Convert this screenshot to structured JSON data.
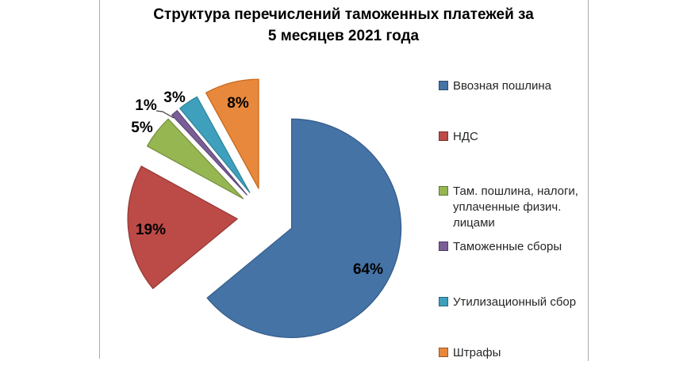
{
  "chart": {
    "title": "Структура перечислений таможенных платежей за\n5 месяцев 2021 года"
  },
  "chart_data": {
    "type": "pie",
    "title": "Структура перечислений таможенных платежей за 5 месяцев 2021 года",
    "unit": "%",
    "start_angle_deg": 0,
    "direction": "clockwise",
    "exploded": true,
    "legend_position": "right",
    "slices": [
      {
        "label": "Ввозная пошлина",
        "value": 64,
        "data_label": "64%",
        "color": "#4573A6",
        "border_color": "#365F8D"
      },
      {
        "label": "НДС",
        "value": 19,
        "data_label": "19%",
        "color": "#BC4A47",
        "border_color": "#953B39"
      },
      {
        "label": "Там. пошлина, налоги, уплаченные физич. лицами",
        "value": 5,
        "data_label": "5%",
        "color": "#96B652",
        "border_color": "#76923F"
      },
      {
        "label": "Таможенные сборы",
        "value": 1,
        "data_label": "1%",
        "color": "#7A5E97",
        "border_color": "#604A7B"
      },
      {
        "label": "Утилизационный сбор",
        "value": 3,
        "data_label": "3%",
        "color": "#3EA0BC",
        "border_color": "#31859B"
      },
      {
        "label": "Штрафы",
        "value": 8,
        "data_label": "8%",
        "color": "#E8883C",
        "border_color": "#C8691D"
      }
    ]
  },
  "legend": {
    "items": [
      {
        "label": "Ввозная пошлина"
      },
      {
        "label": "НДС"
      },
      {
        "label": "Там. пошлина, налоги,\nуплаченные физич.\nлицами"
      },
      {
        "label": "Таможенные сборы"
      },
      {
        "label": "Утилизационный сбор"
      },
      {
        "label": "Штрафы"
      }
    ]
  }
}
